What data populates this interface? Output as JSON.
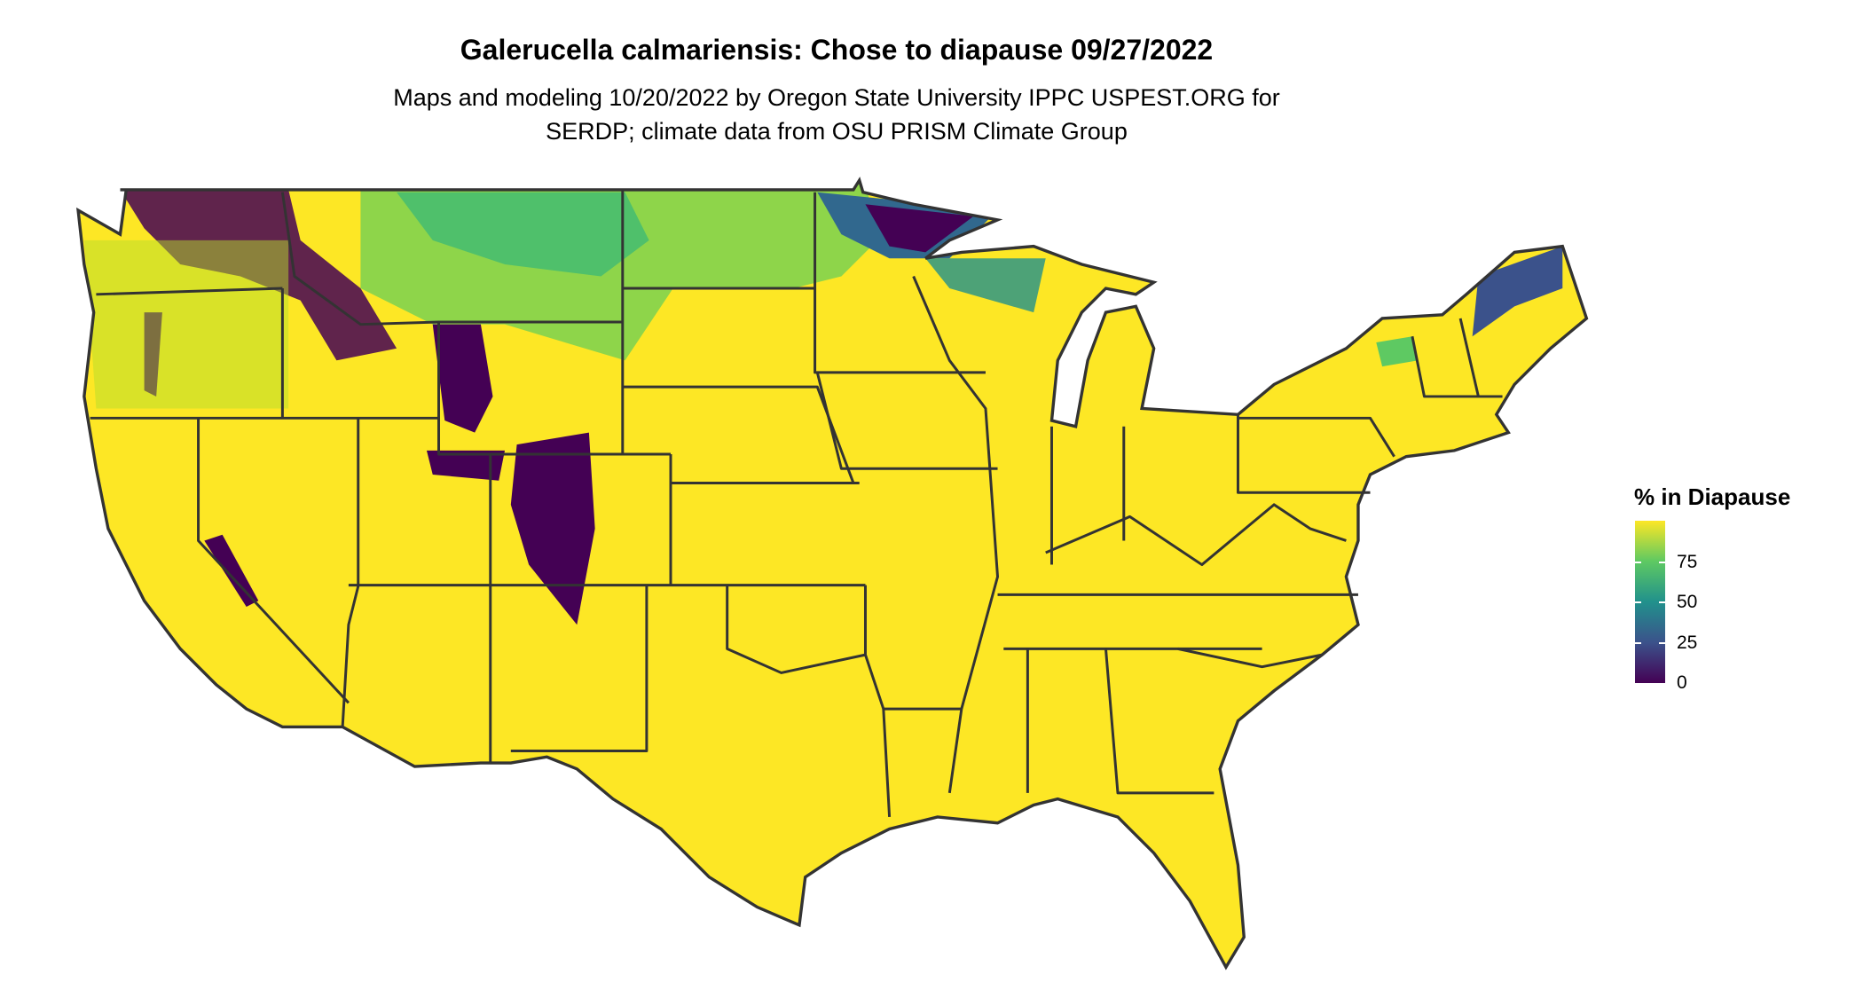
{
  "chart_data": {
    "type": "heatmap",
    "title": "Galerucella calmariensis: Chose to diapause 09/27/2022",
    "subtitle": [
      "Maps and modeling 10/20/2022 by Oregon State University IPPC USPEST.ORG for",
      "SERDP; climate data from OSU PRISM Climate Group"
    ],
    "legend": {
      "title": "% in Diapause",
      "ticks": [
        "0",
        "25",
        "50",
        "75"
      ],
      "range": [
        0,
        100
      ],
      "placement": "right",
      "colormap": [
        "#440154",
        "#3b528b",
        "#21918c",
        "#5ec962",
        "#fde725"
      ]
    },
    "colors": {
      "high": "#fde725",
      "low": "#440154",
      "border": "#333333"
    }
  }
}
